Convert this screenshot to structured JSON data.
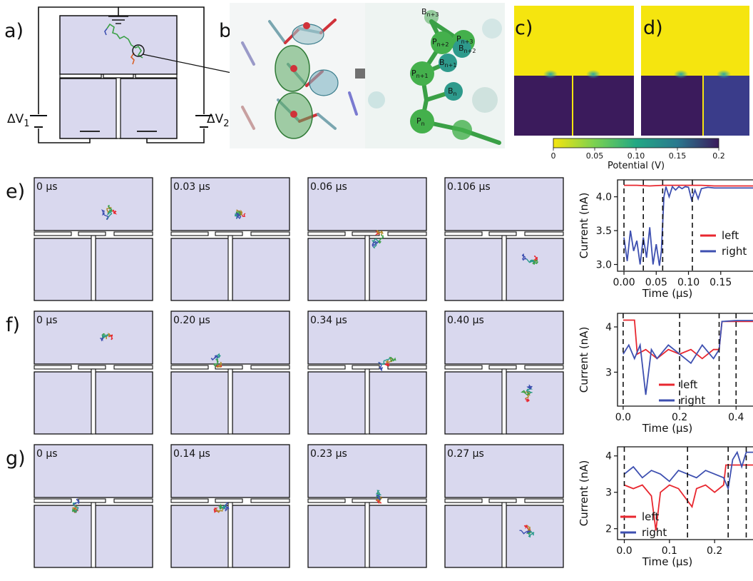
{
  "panel_labels": {
    "a": "a)",
    "b": "b)",
    "c": "c)",
    "d": "d)",
    "e": "e)",
    "f": "f)",
    "g": "g)"
  },
  "circuit": {
    "dv1": "ΔV",
    "dv1_sub": "1",
    "dv2": "ΔV",
    "dv2_sub": "2"
  },
  "molecule_labels": [
    {
      "t": "B",
      "s": "n+3"
    },
    {
      "t": "P",
      "s": "n+3"
    },
    {
      "t": "P",
      "s": "n+2"
    },
    {
      "t": "B",
      "s": "n+2"
    },
    {
      "t": "B",
      "s": "n+1"
    },
    {
      "t": "P",
      "s": "n+1"
    },
    {
      "t": "B",
      "s": "n"
    },
    {
      "t": "P",
      "s": "n"
    }
  ],
  "colorbar": {
    "ticks": [
      "0",
      "0.05",
      "0.10",
      "0.15",
      "0.2"
    ],
    "label": "Potential (V)"
  },
  "snapshots": {
    "e": [
      "0 µs",
      "0.03 µs",
      "0.06 µs",
      "0.106 µs"
    ],
    "f": [
      "0 µs",
      "0.20 µs",
      "0.34 µs",
      "0.40 µs"
    ],
    "g": [
      "0 µs",
      "0.14 µs",
      "0.23 µs",
      "0.27 µs"
    ]
  },
  "colors": {
    "left": "#e8272f",
    "right": "#3d4fb0",
    "chamber": "#d9d8ee",
    "yellow": "#f5e50f",
    "purple": "#3b1b5c"
  },
  "chart_data": [
    {
      "type": "line",
      "panel": "e",
      "xlabel": "Time (µs)",
      "ylabel": "Current (nA)",
      "xticks": [
        "0.00",
        "0.05",
        "0.10",
        "0.15"
      ],
      "yticks": [
        "3.0",
        "3.5",
        "4.0"
      ],
      "xlim": [
        -0.01,
        0.2
      ],
      "ylim": [
        2.9,
        4.25
      ],
      "events": [
        0.0,
        0.03,
        0.06,
        0.106
      ],
      "series": [
        {
          "name": "left",
          "x": [
            0.0,
            0.02,
            0.04,
            0.06,
            0.08,
            0.1,
            0.12,
            0.14,
            0.16,
            0.18,
            0.2
          ],
          "y": [
            4.17,
            4.17,
            4.16,
            4.17,
            4.17,
            4.17,
            4.17,
            4.16,
            4.16,
            4.16,
            4.16
          ]
        },
        {
          "name": "right",
          "x": [
            0.0,
            0.005,
            0.01,
            0.015,
            0.02,
            0.025,
            0.03,
            0.035,
            0.04,
            0.045,
            0.05,
            0.055,
            0.058,
            0.062,
            0.065,
            0.07,
            0.075,
            0.08,
            0.085,
            0.09,
            0.095,
            0.1,
            0.105,
            0.11,
            0.115,
            0.12,
            0.13,
            0.14,
            0.16,
            0.18,
            0.2
          ],
          "y": [
            3.4,
            3.05,
            3.5,
            3.2,
            3.35,
            3.0,
            3.4,
            3.1,
            3.55,
            3.0,
            3.3,
            2.98,
            3.2,
            4.0,
            4.15,
            4.0,
            4.15,
            4.1,
            4.15,
            4.12,
            4.15,
            4.14,
            3.95,
            4.1,
            3.97,
            4.12,
            4.14,
            4.13,
            4.13,
            4.13,
            4.13
          ]
        }
      ]
    },
    {
      "type": "line",
      "panel": "f",
      "xlabel": "Time (µs)",
      "ylabel": "Current (nA)",
      "xticks": [
        "0.0",
        "0.2",
        "0.4"
      ],
      "yticks": [
        "3",
        "4"
      ],
      "xlim": [
        -0.02,
        0.46
      ],
      "ylim": [
        2.25,
        4.3
      ],
      "events": [
        0.0,
        0.2,
        0.34,
        0.4
      ],
      "series": [
        {
          "name": "left",
          "x": [
            0.0,
            0.04,
            0.05,
            0.08,
            0.12,
            0.16,
            0.2,
            0.24,
            0.28,
            0.32,
            0.34,
            0.35,
            0.4,
            0.46
          ],
          "y": [
            4.15,
            4.15,
            3.4,
            3.5,
            3.3,
            3.5,
            3.4,
            3.5,
            3.3,
            3.5,
            3.5,
            4.12,
            4.12,
            4.12
          ]
        },
        {
          "name": "right",
          "x": [
            0.0,
            0.02,
            0.04,
            0.06,
            0.08,
            0.1,
            0.12,
            0.16,
            0.2,
            0.24,
            0.28,
            0.32,
            0.34,
            0.35,
            0.4,
            0.46
          ],
          "y": [
            3.4,
            3.6,
            3.3,
            3.6,
            2.5,
            3.5,
            3.3,
            3.6,
            3.4,
            3.2,
            3.6,
            3.3,
            3.5,
            4.12,
            4.14,
            4.14
          ]
        }
      ]
    },
    {
      "type": "line",
      "panel": "g",
      "xlabel": "Time (µs)",
      "ylabel": "Current (nA)",
      "xticks": [
        "0.0",
        "0.1",
        "0.2"
      ],
      "yticks": [
        "2",
        "3",
        "4"
      ],
      "xlim": [
        -0.015,
        0.285
      ],
      "ylim": [
        1.7,
        4.25
      ],
      "events": [
        0.0,
        0.14,
        0.23,
        0.27
      ],
      "series": [
        {
          "name": "left",
          "x": [
            0.0,
            0.02,
            0.04,
            0.06,
            0.07,
            0.08,
            0.1,
            0.12,
            0.15,
            0.16,
            0.18,
            0.2,
            0.22,
            0.225,
            0.25,
            0.285
          ],
          "y": [
            3.2,
            3.1,
            3.2,
            2.9,
            1.95,
            3.0,
            3.2,
            3.1,
            2.6,
            3.1,
            3.2,
            3.0,
            3.2,
            3.75,
            3.75,
            3.75
          ]
        },
        {
          "name": "right",
          "x": [
            0.0,
            0.02,
            0.04,
            0.06,
            0.08,
            0.1,
            0.12,
            0.14,
            0.16,
            0.18,
            0.2,
            0.22,
            0.23,
            0.24,
            0.25,
            0.26,
            0.27,
            0.285
          ],
          "y": [
            3.5,
            3.7,
            3.4,
            3.6,
            3.5,
            3.3,
            3.6,
            3.5,
            3.4,
            3.6,
            3.5,
            3.4,
            3.1,
            3.9,
            4.1,
            3.7,
            4.1,
            4.1
          ]
        }
      ]
    }
  ]
}
